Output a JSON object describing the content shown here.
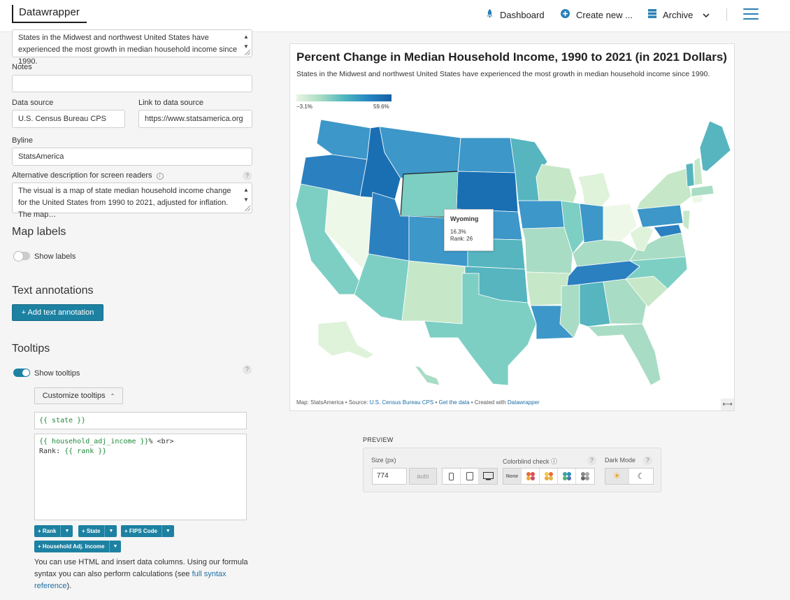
{
  "topbar": {
    "logo": "Datawrapper",
    "nav": [
      {
        "label": "Dashboard",
        "icon": "rocket-icon"
      },
      {
        "label": "Create new ...",
        "icon": "plus-circle-icon"
      },
      {
        "label": "Archive",
        "icon": "archive-icon"
      }
    ]
  },
  "form": {
    "description_value": "States in the Midwest and northwest United States have experienced the most growth in median household income since 1990.",
    "notes_label": "Notes",
    "notes_value": "",
    "data_source_label": "Data source",
    "data_source_value": "U.S. Census Bureau CPS",
    "link_label": "Link to data source",
    "link_value": "https://www.statsamerica.org",
    "byline_label": "Byline",
    "byline_value": "StatsAmerica",
    "alt_label": "Alternative description for screen readers",
    "alt_value": "The visual is a map of state median household income change for the United States from 1990 to 2021, adjusted for inflation. The map…"
  },
  "map_labels": {
    "heading": "Map labels",
    "toggle_label": "Show labels",
    "on": false
  },
  "text_annotations": {
    "heading": "Text annotations",
    "button": "+ Add text annotation"
  },
  "tooltips": {
    "heading": "Tooltips",
    "toggle_label": "Show tooltips",
    "on": true,
    "customize_button": "Customize tooltips",
    "title_template": "{{ state }}",
    "body_line1_var": "{{ household_adj_income }}",
    "body_line1_rest": "% <br>",
    "body_line2_label": "Rank: ",
    "body_line2_var": "{{ rank }}",
    "chips": [
      "+ Rank",
      "+ State",
      "+ FIPS Code",
      "+ Household Adj. Income"
    ],
    "help_pre": "You can use HTML and insert data columns. Using our formula syntax you can also perform calculations (see ",
    "help_link": "full syntax reference",
    "help_post": ")."
  },
  "chart": {
    "title": "Percent Change in Median Household Income, 1990 to 2021 (in 2021 Dollars)",
    "subtitle": "States in the Midwest and northwest United States have experienced the most growth in median household income since 1990.",
    "legend_min": "−3.1%",
    "legend_max": "59.6%",
    "tooltip": {
      "state": "Wyoming",
      "value": "16.3%",
      "rank": "Rank: 26"
    },
    "footer_map": "Map: StatsAmerica • Source: ",
    "footer_source": "U.S. Census Bureau CPS",
    "footer_sep1": " • ",
    "footer_get": "Get the data",
    "footer_sep2": " • Created with ",
    "footer_dw": "Datawrapper"
  },
  "preview": {
    "label": "PREVIEW",
    "size_label": "Size (px)",
    "size_value": "774",
    "auto_label": "auto",
    "colorblind_label": "Colorblind check",
    "colorblind_none": "None",
    "dark_mode_label": "Dark Mode"
  }
}
